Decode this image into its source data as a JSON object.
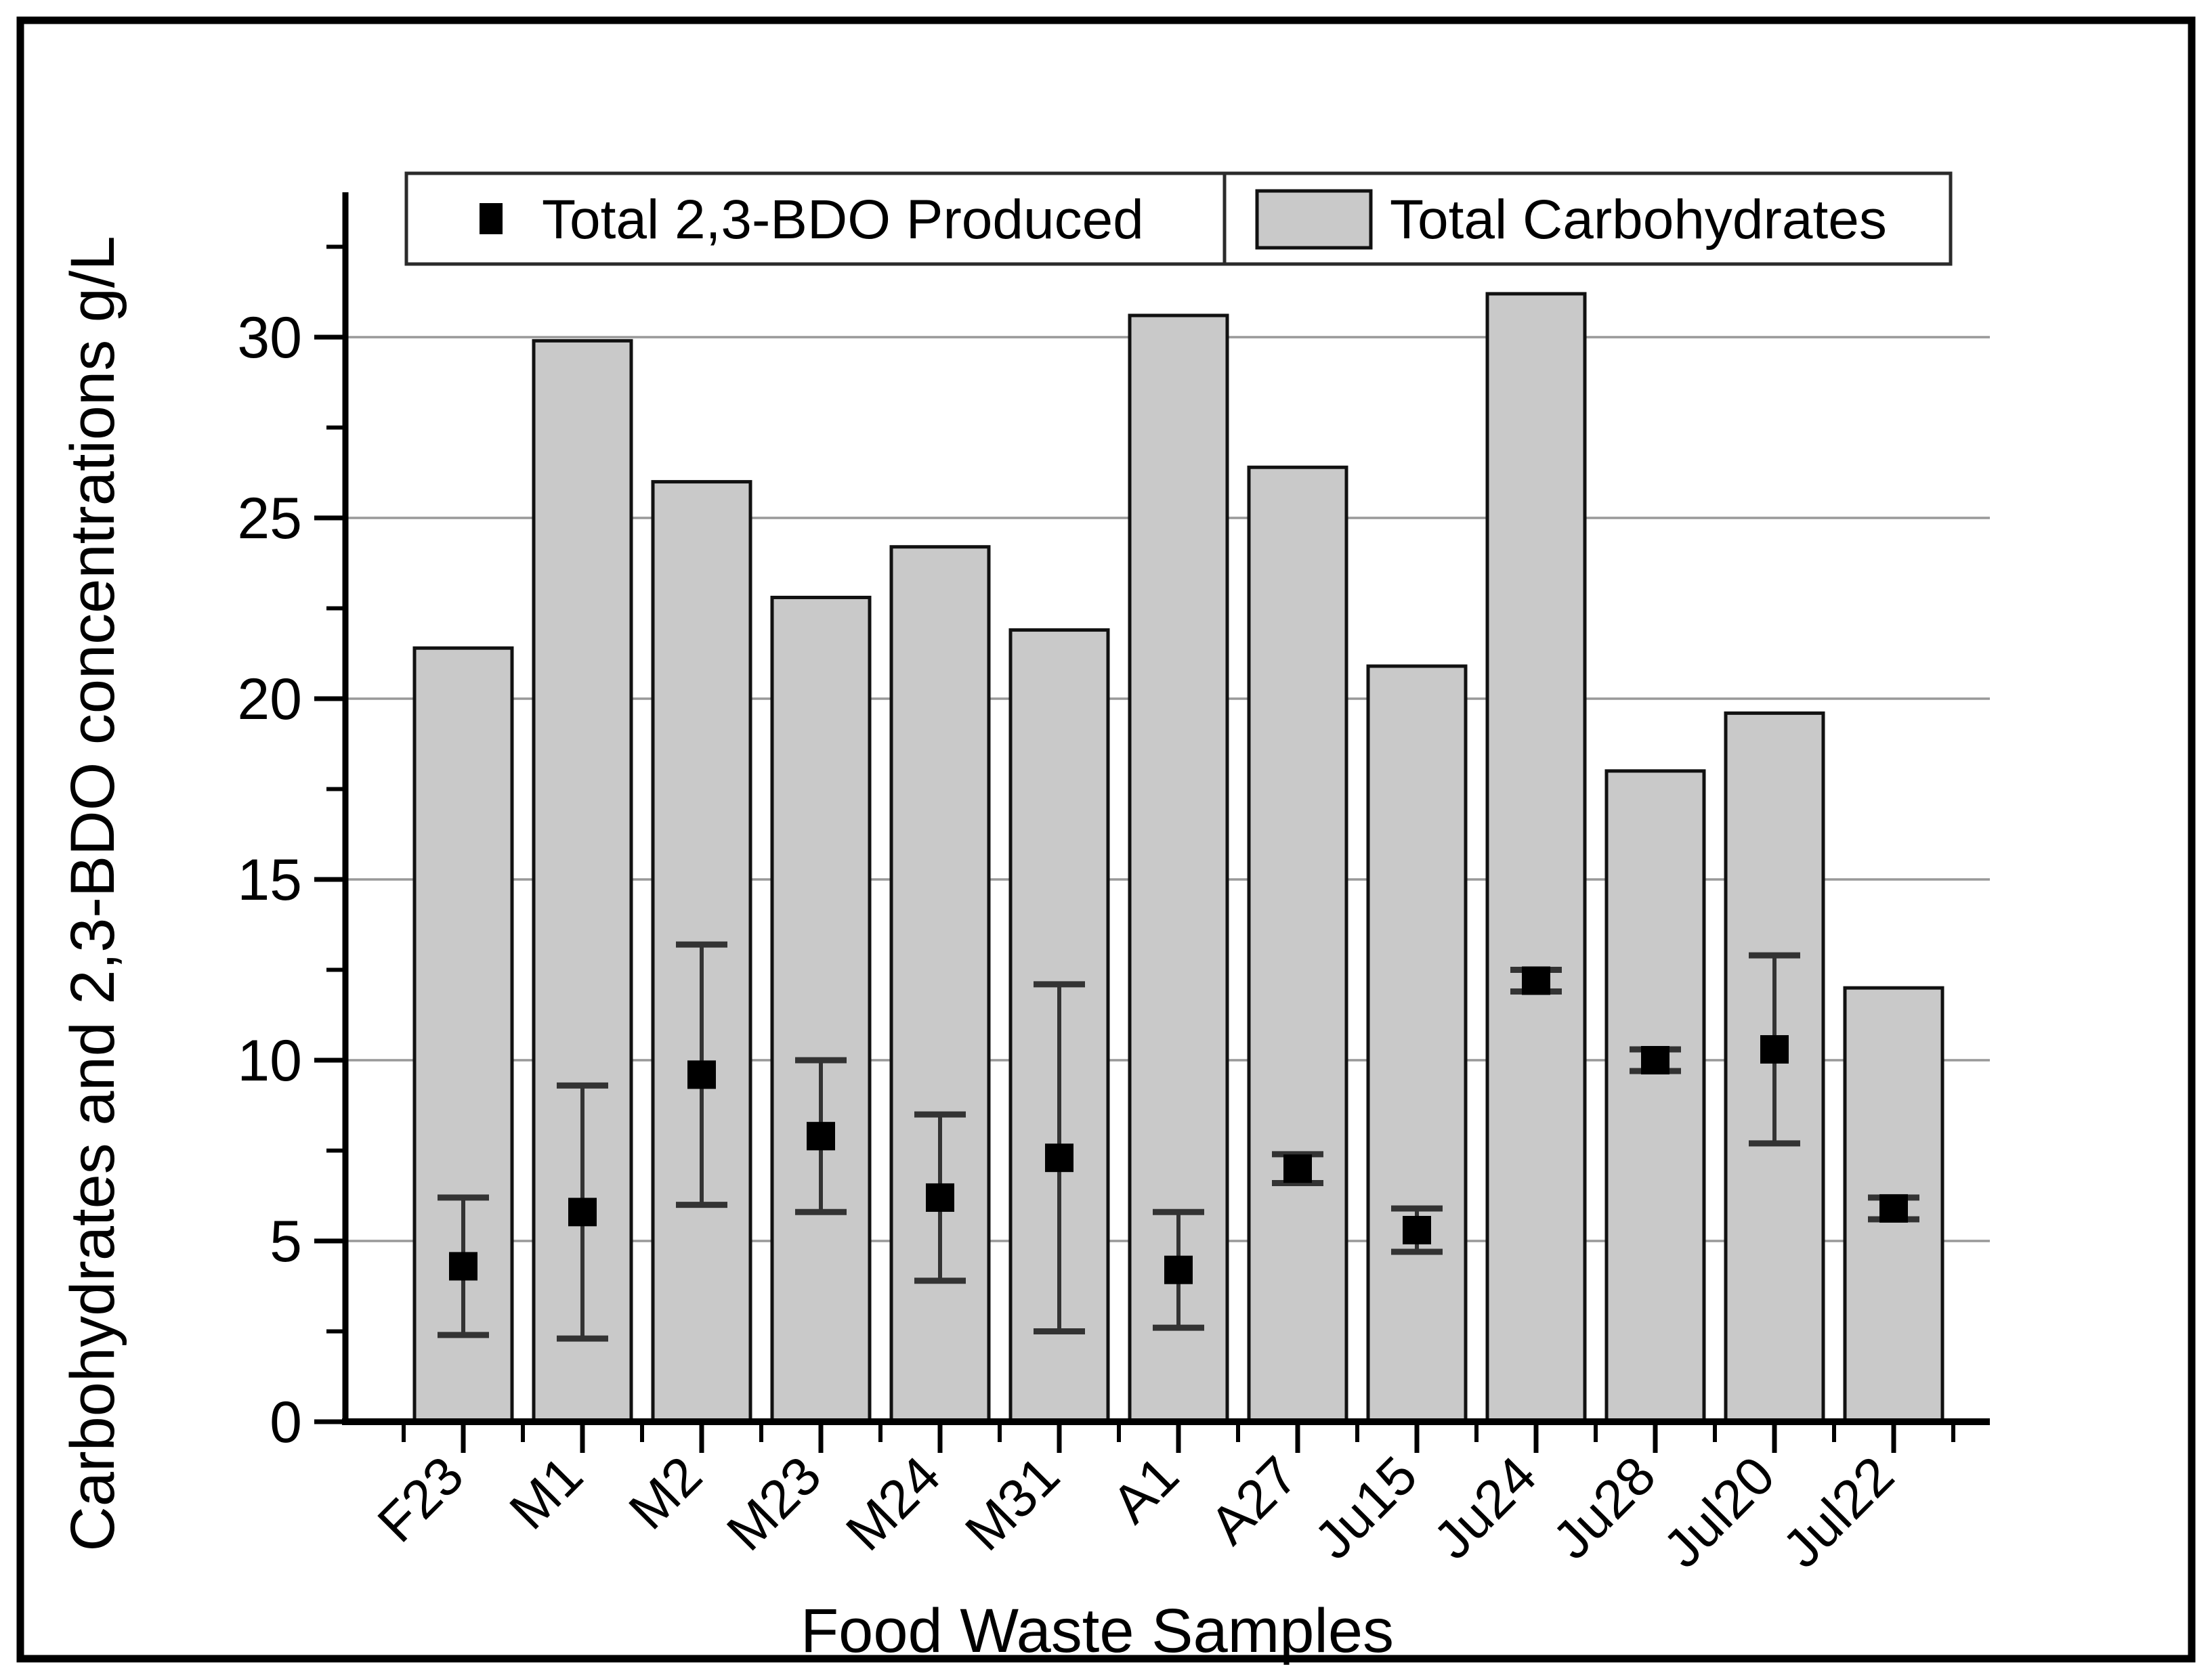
{
  "figure": {
    "background": "#ffffff",
    "border_color": "#000000"
  },
  "axes": {
    "x_label": "Food Waste Samples",
    "y_label": "Carbohydrates and 2,3-BDO concentrations g/L"
  },
  "legend": {
    "items": [
      {
        "label": "Total 2,3-BDO Produced",
        "swatch": "black-square-marker"
      },
      {
        "label": "Total Carbohydrates",
        "swatch": "gray-bar"
      }
    ]
  },
  "chart_data": {
    "type": "bar",
    "title": "",
    "xlabel": "Food Waste Samples",
    "ylabel": "Carbohydrates and 2,3-BDO concentrations g/L",
    "ylim": [
      0,
      34
    ],
    "yticks_major": [
      0,
      5,
      10,
      15,
      20,
      25,
      30
    ],
    "yticks_minor": [
      2.5,
      7.5,
      12.5,
      17.5,
      22.5,
      27.5,
      32.5
    ],
    "grid": "horizontal-major",
    "legend_position": "top-inside",
    "categories": [
      "F23",
      "M1",
      "M2",
      "M23",
      "M24",
      "M31",
      "A1",
      "A27",
      "Ju15",
      "Ju24",
      "Ju28",
      "Jul20",
      "Jul22"
    ],
    "series": [
      {
        "name": "Total Carbohydrates",
        "type": "bar",
        "fill_color": "#c9c9c9",
        "stroke_color": "#111111",
        "values": [
          21.4,
          29.9,
          26.0,
          22.8,
          24.2,
          21.9,
          30.6,
          26.4,
          20.9,
          31.2,
          18.0,
          19.6,
          12.0
        ]
      },
      {
        "name": "Total 2,3-BDO Produced",
        "type": "scatter",
        "marker": "square",
        "marker_color": "#000000",
        "errorbar_color": "#333333",
        "values": [
          4.3,
          5.8,
          9.6,
          7.9,
          6.2,
          7.3,
          4.2,
          7.0,
          5.3,
          12.2,
          10.0,
          10.3,
          5.9
        ],
        "errors": [
          1.9,
          3.5,
          3.6,
          2.1,
          2.3,
          4.8,
          1.6,
          0.4,
          0.6,
          0.3,
          0.3,
          2.6,
          0.3
        ]
      }
    ]
  }
}
